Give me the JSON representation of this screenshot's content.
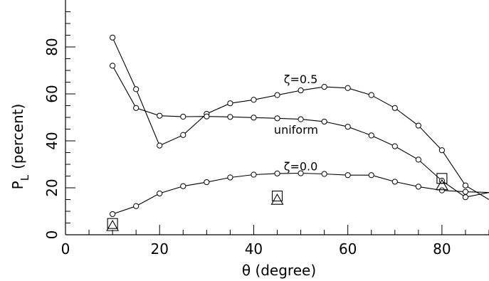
{
  "chart_data": {
    "type": "line",
    "xlabel": "θ (degree)",
    "ylabel_main": "P",
    "ylabel_sub": "L",
    "ylabel_rest": "(percent)",
    "xlim": [
      0,
      90
    ],
    "ylim": [
      0,
      100
    ],
    "xticks": [
      0,
      20,
      40,
      60,
      80
    ],
    "yticks": [
      0,
      20,
      40,
      60,
      80
    ],
    "grid": false,
    "series": [
      {
        "name": "ζ=0.5",
        "x": [
          10,
          15,
          20,
          25,
          30,
          35,
          40,
          45,
          50,
          55,
          60,
          65,
          70,
          75,
          80,
          85,
          90
        ],
        "y": [
          84,
          62,
          38,
          42.5,
          51.5,
          56,
          57.5,
          59.5,
          61.5,
          63,
          62.5,
          59.5,
          54,
          46.5,
          36,
          21,
          15
        ]
      },
      {
        "name": "uniform",
        "x": [
          10,
          15,
          20,
          25,
          30,
          35,
          40,
          45,
          50,
          55,
          60,
          65,
          70,
          75,
          80,
          85,
          90
        ],
        "y": [
          72,
          54,
          50.7,
          50.3,
          50.4,
          50.2,
          49.9,
          49.6,
          49.2,
          48.2,
          46,
          42.3,
          37.7,
          32,
          23,
          16,
          18
        ]
      },
      {
        "name": "ζ=0.0",
        "x": [
          10,
          15,
          20,
          25,
          30,
          35,
          40,
          45,
          50,
          55,
          60,
          65,
          70,
          75,
          80,
          85,
          90
        ],
        "y": [
          8.8,
          12.2,
          17.6,
          20.7,
          22.4,
          24.4,
          25.6,
          26.1,
          26.2,
          25.9,
          25.4,
          25.4,
          22.6,
          20.5,
          18.9,
          18.3,
          18
        ]
      }
    ],
    "squares": {
      "x": [
        10,
        45,
        80
      ],
      "y": [
        4.8,
        16.5,
        24
      ]
    },
    "triangles": {
      "x": [
        10,
        45,
        80
      ],
      "y": [
        3.6,
        14.8,
        21
      ]
    },
    "annotations": [
      {
        "text": "ζ=0.5",
        "x": 50,
        "y": 64.5
      },
      {
        "text": "uniform",
        "x": 49,
        "y": 43
      },
      {
        "text": "ζ=0.0",
        "x": 50,
        "y": 27.5
      }
    ]
  }
}
